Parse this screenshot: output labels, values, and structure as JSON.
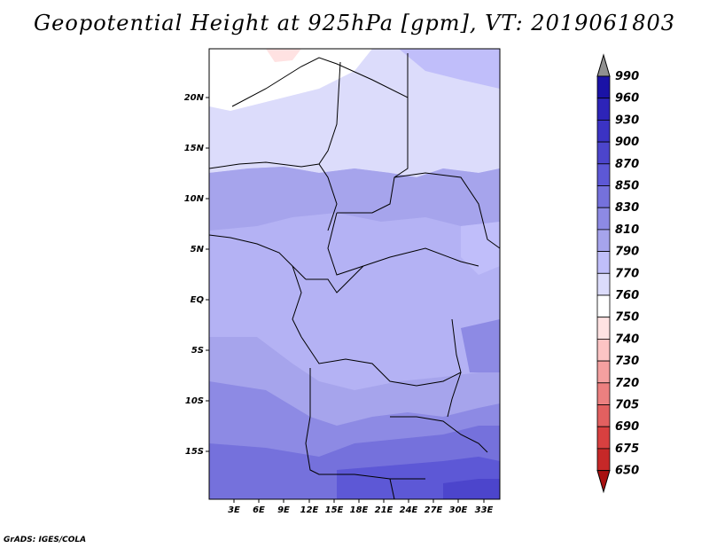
{
  "title": "Geopotential Height at 925hPa [gpm], VT: 2019061803",
  "credit": "GrADS: IGES/COLA",
  "map": {
    "lat_labels": [
      "20N",
      "15N",
      "10N",
      "5N",
      "EQ",
      "5S",
      "10S",
      "15S"
    ],
    "lon_labels": [
      "3E",
      "6E",
      "9E",
      "12E",
      "15E",
      "18E",
      "21E",
      "24E",
      "27E",
      "30E",
      "33E"
    ]
  },
  "colorbar": {
    "levels": [
      "990",
      "960",
      "930",
      "900",
      "870",
      "850",
      "830",
      "810",
      "790",
      "770",
      "760",
      "750",
      "740",
      "730",
      "720",
      "705",
      "690",
      "675",
      "650"
    ],
    "colors": [
      "#1a12a6",
      "#2d24b8",
      "#3b33c4",
      "#4c45cc",
      "#5d58d6",
      "#7571dc",
      "#8d8ae4",
      "#a6a4ec",
      "#c0befa",
      "#dcdcfb",
      "#ffffff",
      "#ffe2e2",
      "#fcc4c4",
      "#f4a0a0",
      "#ec8080",
      "#e26060",
      "#d84040",
      "#c62828",
      "#a81010"
    ]
  }
}
